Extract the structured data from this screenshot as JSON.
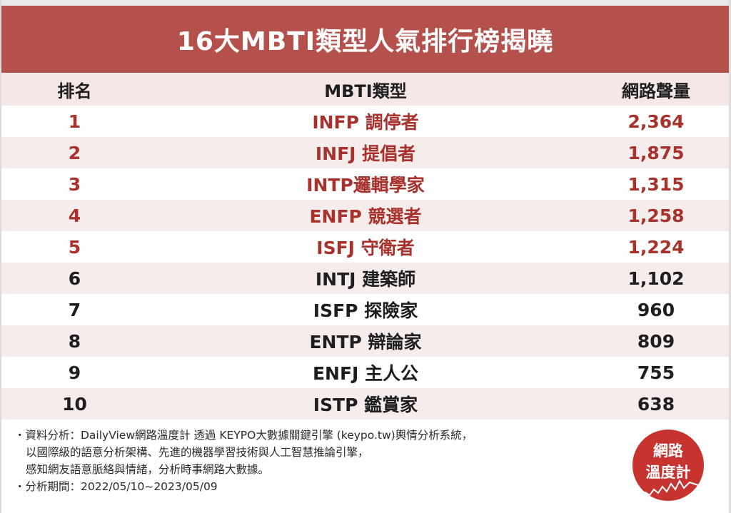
{
  "title": "16大MBTI類型人氣排行榜揭曉",
  "table": {
    "headers": {
      "rank": "排名",
      "type": "MBTI類型",
      "volume": "網路聲量"
    },
    "rows": [
      {
        "rank": "1",
        "type": "INFP 調停者",
        "volume": "2,364"
      },
      {
        "rank": "2",
        "type": "INFJ 提倡者",
        "volume": "1,875"
      },
      {
        "rank": "3",
        "type": "INTP邏輯學家",
        "volume": "1,315"
      },
      {
        "rank": "4",
        "type": "ENFP 競選者",
        "volume": "1,258"
      },
      {
        "rank": "5",
        "type": "ISFJ 守衛者",
        "volume": "1,224"
      },
      {
        "rank": "6",
        "type": "INTJ 建築師",
        "volume": "1,102"
      },
      {
        "rank": "7",
        "type": "ISFP 探險家",
        "volume": "960"
      },
      {
        "rank": "8",
        "type": "ENTP 辯論家",
        "volume": "809"
      },
      {
        "rank": "9",
        "type": "ENFJ 主人公",
        "volume": "755"
      },
      {
        "rank": "10",
        "type": "ISTP 鑑賞家",
        "volume": "638"
      }
    ]
  },
  "footer": {
    "line1": "・資料分析：DailyView網路溫度計 透過 KEYPO大數據關鍵引擎 (keypo.tw)輿情分析系統，",
    "line2": "以國際級的語意分析架構、先進的機器學習技術與人工智慧推論引擎，",
    "line3": "感知網友語意脈絡與情緒，分析時事網路大數據。",
    "line4": "・分析期間：2022/05/10~2023/05/09"
  },
  "logo": {
    "line1": "網路",
    "line2": "溫度計"
  },
  "colors": {
    "title_bg": "#b5514d",
    "highlight_text": "#a8312c",
    "alt_row": "#f7ecec",
    "logo_bg": "#c7332f"
  }
}
